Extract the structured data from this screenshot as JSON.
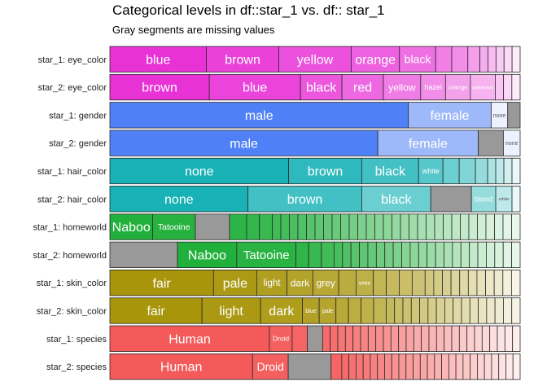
{
  "title": "Categorical levels in df::star_1 vs. df:: star_1",
  "subtitle": "Gray segments are missing values",
  "colors": {
    "missing": "#999999",
    "outline": "#2b2b2b",
    "eye_color": "#e832d6",
    "gender": "#4f80f5",
    "hair_color": "#18b2b6",
    "homeworld": "#21b03b",
    "skin_color": "#a8950a",
    "species": "#f45a5a"
  },
  "chart_data": {
    "type": "bar",
    "orientation": "horizontal",
    "stacked": true,
    "value_unit": "proportion of rows",
    "rows": [
      {
        "label": "star_1: eye_color",
        "color": "eye_color",
        "segments": [
          {
            "level": "blue",
            "value": 0.2424
          },
          {
            "level": "brown",
            "value": 0.1818
          },
          {
            "level": "yellow",
            "value": 0.1818
          },
          {
            "level": "orange",
            "value": 0.1212
          },
          {
            "level": "black",
            "value": 0.0909
          },
          {
            "level": "",
            "value": 0.0404
          },
          {
            "level": "",
            "value": 0.0404
          },
          {
            "level": "",
            "value": 0.0303
          },
          {
            "level": "",
            "value": 0.0202
          },
          {
            "level": "",
            "value": 0.0202
          },
          {
            "level": "",
            "value": 0.0202
          },
          {
            "level": "",
            "value": 0.0202
          },
          {
            "level": "",
            "value": 0.0202
          }
        ]
      },
      {
        "label": "star_2: eye_color",
        "color": "eye_color",
        "segments": [
          {
            "level": "brown",
            "value": 0.2424
          },
          {
            "level": "blue",
            "value": 0.2222
          },
          {
            "level": "black",
            "value": 0.101
          },
          {
            "level": "red",
            "value": 0.101
          },
          {
            "level": "yellow",
            "value": 0.0909
          },
          {
            "level": "hazel",
            "value": 0.0606
          },
          {
            "level": "orange",
            "value": 0.0606
          },
          {
            "level": "unknown",
            "value": 0.0606
          },
          {
            "level": "",
            "value": 0.0202
          },
          {
            "level": "",
            "value": 0.0202
          },
          {
            "level": "",
            "value": 0.0202
          }
        ]
      },
      {
        "label": "star_1: gender",
        "color": "gender",
        "segments": [
          {
            "level": "male",
            "value": 0.7273
          },
          {
            "level": "female",
            "value": 0.202
          },
          {
            "level": "none",
            "value": 0.0404
          },
          {
            "level": "",
            "value": 0.0303,
            "missing": true
          }
        ]
      },
      {
        "label": "star_2: gender",
        "color": "gender",
        "segments": [
          {
            "level": "male",
            "value": 0.6465
          },
          {
            "level": "female",
            "value": 0.2424
          },
          {
            "level": "",
            "value": 0.0606,
            "missing": true
          },
          {
            "level": "none",
            "value": 0.0404
          }
        ]
      },
      {
        "label": "star_1: hair_color",
        "color": "hair_color",
        "segments": [
          {
            "level": "none",
            "value": 0.4444
          },
          {
            "level": "brown",
            "value": 0.1818
          },
          {
            "level": "black",
            "value": 0.1414
          },
          {
            "level": "white",
            "value": 0.0606
          },
          {
            "level": "",
            "value": 0.0404
          },
          {
            "level": "",
            "value": 0.0404
          },
          {
            "level": "",
            "value": 0.0303
          },
          {
            "level": "",
            "value": 0.0202
          },
          {
            "level": "",
            "value": 0.0202
          },
          {
            "level": "",
            "value": 0.0202
          },
          {
            "level": "",
            "value": 0.0202
          }
        ]
      },
      {
        "label": "star_2: hair_color",
        "color": "hair_color",
        "segments": [
          {
            "level": "none",
            "value": 0.3434
          },
          {
            "level": "brown",
            "value": 0.2828
          },
          {
            "level": "black",
            "value": 0.1717
          },
          {
            "level": "",
            "value": 0.101,
            "missing": true
          },
          {
            "level": "blond",
            "value": 0.0606
          },
          {
            "level": "white",
            "value": 0.0404
          },
          {
            "level": "",
            "value": 0.0202
          }
        ]
      },
      {
        "label": "star_1: homeworld",
        "color": "homeworld",
        "segments": [
          {
            "level": "Naboo",
            "value": 0.101
          },
          {
            "level": "Tatooine",
            "value": 0.101
          },
          {
            "level": "",
            "value": 0.0808,
            "missing": true
          },
          {
            "level": "",
            "value": 0.0404
          },
          {
            "level": "",
            "value": 0.0303
          },
          {
            "level": "",
            "value": 0.0303
          },
          {
            "level": "",
            "value": 0.0202
          },
          {
            "level": "",
            "value": 0.0202
          },
          {
            "level": "",
            "value": 0.0202
          },
          {
            "level": "",
            "value": 0.0202
          },
          {
            "level": "",
            "value": 0.0202
          },
          {
            "level": "",
            "value": 0.0202
          },
          {
            "level": "",
            "value": 0.0202
          },
          {
            "level": "",
            "value": 0.0202
          },
          {
            "level": "",
            "value": 0.0202
          },
          {
            "level": "",
            "value": 0.0202
          },
          {
            "level": "",
            "value": 0.0202
          },
          {
            "level": "",
            "value": 0.0202
          },
          {
            "level": "",
            "value": 0.0202
          },
          {
            "level": "",
            "value": 0.0202
          },
          {
            "level": "",
            "value": 0.0202
          },
          {
            "level": "",
            "value": 0.0202
          },
          {
            "level": "",
            "value": 0.0202
          },
          {
            "level": "",
            "value": 0.0202
          },
          {
            "level": "",
            "value": 0.0202
          },
          {
            "level": "",
            "value": 0.0202
          },
          {
            "level": "",
            "value": 0.0202
          },
          {
            "level": "",
            "value": 0.0202
          },
          {
            "level": "",
            "value": 0.0202
          },
          {
            "level": "",
            "value": 0.0202
          },
          {
            "level": "",
            "value": 0.0202
          },
          {
            "level": "",
            "value": 0.0202
          },
          {
            "level": "",
            "value": 0.0202
          },
          {
            "level": "",
            "value": 0.0202
          },
          {
            "level": "",
            "value": 0.0202
          }
        ]
      },
      {
        "label": "star_2: homeworld",
        "color": "homeworld",
        "segments": [
          {
            "level": "",
            "value": 0.1616,
            "missing": true
          },
          {
            "level": "Naboo",
            "value": 0.1414
          },
          {
            "level": "Tatooine",
            "value": 0.1414
          },
          {
            "level": "",
            "value": 0.0303
          },
          {
            "level": "",
            "value": 0.0303
          },
          {
            "level": "",
            "value": 0.0303
          },
          {
            "level": "",
            "value": 0.0202
          },
          {
            "level": "",
            "value": 0.0202
          },
          {
            "level": "",
            "value": 0.0202
          },
          {
            "level": "",
            "value": 0.0202
          },
          {
            "level": "",
            "value": 0.0202
          },
          {
            "level": "",
            "value": 0.0202
          },
          {
            "level": "",
            "value": 0.0202
          },
          {
            "level": "",
            "value": 0.0202
          },
          {
            "level": "",
            "value": 0.0202
          },
          {
            "level": "",
            "value": 0.0202
          },
          {
            "level": "",
            "value": 0.0202
          },
          {
            "level": "",
            "value": 0.0202
          },
          {
            "level": "",
            "value": 0.0202
          },
          {
            "level": "",
            "value": 0.0202
          },
          {
            "level": "",
            "value": 0.0202
          },
          {
            "level": "",
            "value": 0.0202
          },
          {
            "level": "",
            "value": 0.0202
          },
          {
            "level": "",
            "value": 0.0202
          },
          {
            "level": "",
            "value": 0.0202
          },
          {
            "level": "",
            "value": 0.0202
          },
          {
            "level": "",
            "value": 0.0202
          },
          {
            "level": "",
            "value": 0.0202
          }
        ]
      },
      {
        "label": "star_1: skin_color",
        "color": "skin_color",
        "segments": [
          {
            "level": "fair",
            "value": 0.2424
          },
          {
            "level": "pale",
            "value": 0.101
          },
          {
            "level": "light",
            "value": 0.0707
          },
          {
            "level": "dark",
            "value": 0.0606
          },
          {
            "level": "grey",
            "value": 0.0606
          },
          {
            "level": "",
            "value": 0.0404
          },
          {
            "level": "white",
            "value": 0.0404
          },
          {
            "level": "",
            "value": 0.0303
          },
          {
            "level": "",
            "value": 0.0303
          },
          {
            "level": "",
            "value": 0.0303
          },
          {
            "level": "",
            "value": 0.0303
          },
          {
            "level": "",
            "value": 0.0202
          },
          {
            "level": "",
            "value": 0.0202
          },
          {
            "level": "",
            "value": 0.0202
          },
          {
            "level": "",
            "value": 0.0202
          },
          {
            "level": "",
            "value": 0.0202
          },
          {
            "level": "",
            "value": 0.0202
          },
          {
            "level": "",
            "value": 0.0202
          },
          {
            "level": "",
            "value": 0.0202
          },
          {
            "level": "",
            "value": 0.0202
          },
          {
            "level": "",
            "value": 0.0202
          },
          {
            "level": "",
            "value": 0.0202
          }
        ]
      },
      {
        "label": "star_2: skin_color",
        "color": "skin_color",
        "segments": [
          {
            "level": "fair",
            "value": 0.2222
          },
          {
            "level": "light",
            "value": 0.1414
          },
          {
            "level": "dark",
            "value": 0.101
          },
          {
            "level": "blue",
            "value": 0.0404
          },
          {
            "level": "pale",
            "value": 0.0404
          },
          {
            "level": "",
            "value": 0.0303
          },
          {
            "level": "",
            "value": 0.0303
          },
          {
            "level": "",
            "value": 0.0303
          },
          {
            "level": "",
            "value": 0.0303
          },
          {
            "level": "",
            "value": 0.0202
          },
          {
            "level": "",
            "value": 0.0202
          },
          {
            "level": "",
            "value": 0.0202
          },
          {
            "level": "",
            "value": 0.0202
          },
          {
            "level": "",
            "value": 0.0202
          },
          {
            "level": "",
            "value": 0.0202
          },
          {
            "level": "",
            "value": 0.0202
          },
          {
            "level": "",
            "value": 0.0202
          },
          {
            "level": "",
            "value": 0.0202
          },
          {
            "level": "",
            "value": 0.0202
          },
          {
            "level": "",
            "value": 0.0202
          },
          {
            "level": "",
            "value": 0.0202
          },
          {
            "level": "",
            "value": 0.0202
          },
          {
            "level": "",
            "value": 0.0202
          },
          {
            "level": "",
            "value": 0.0202
          },
          {
            "level": "",
            "value": 0.0202
          }
        ]
      },
      {
        "label": "star_1: species",
        "color": "species",
        "segments": [
          {
            "level": "Human",
            "value": 0.4242
          },
          {
            "level": "Droid",
            "value": 0.0606
          },
          {
            "level": "",
            "value": 0.0404
          },
          {
            "level": "",
            "value": 0.0404,
            "missing": true
          },
          {
            "level": "",
            "value": 0.0202
          },
          {
            "level": "",
            "value": 0.0202
          },
          {
            "level": "",
            "value": 0.0202
          },
          {
            "level": "",
            "value": 0.0202
          },
          {
            "level": "",
            "value": 0.0202
          },
          {
            "level": "",
            "value": 0.0202
          },
          {
            "level": "",
            "value": 0.0202
          },
          {
            "level": "",
            "value": 0.0202
          },
          {
            "level": "",
            "value": 0.0202
          },
          {
            "level": "",
            "value": 0.0202
          },
          {
            "level": "",
            "value": 0.0202
          },
          {
            "level": "",
            "value": 0.0202
          },
          {
            "level": "",
            "value": 0.0202
          },
          {
            "level": "",
            "value": 0.0202
          },
          {
            "level": "",
            "value": 0.0202
          },
          {
            "level": "",
            "value": 0.0202
          },
          {
            "level": "",
            "value": 0.0202
          },
          {
            "level": "",
            "value": 0.0202
          },
          {
            "level": "",
            "value": 0.0202
          },
          {
            "level": "",
            "value": 0.0202
          },
          {
            "level": "",
            "value": 0.0202
          },
          {
            "level": "",
            "value": 0.0202
          },
          {
            "level": "",
            "value": 0.0202
          },
          {
            "level": "",
            "value": 0.0202
          },
          {
            "level": "",
            "value": 0.0202
          },
          {
            "level": "",
            "value": 0.0202
          }
        ]
      },
      {
        "label": "star_2: species",
        "color": "species",
        "segments": [
          {
            "level": "Human",
            "value": 0.404
          },
          {
            "level": "Droid",
            "value": 0.101
          },
          {
            "level": "",
            "value": 0.1212,
            "missing": true
          },
          {
            "level": "",
            "value": 0.0303
          },
          {
            "level": "",
            "value": 0.0202
          },
          {
            "level": "",
            "value": 0.0202
          },
          {
            "level": "",
            "value": 0.0202
          },
          {
            "level": "",
            "value": 0.0202
          },
          {
            "level": "",
            "value": 0.0202
          },
          {
            "level": "",
            "value": 0.0202
          },
          {
            "level": "",
            "value": 0.0202
          },
          {
            "level": "",
            "value": 0.0202
          },
          {
            "level": "",
            "value": 0.0202
          },
          {
            "level": "",
            "value": 0.0202
          },
          {
            "level": "",
            "value": 0.0202
          },
          {
            "level": "",
            "value": 0.0202
          },
          {
            "level": "",
            "value": 0.0202
          },
          {
            "level": "",
            "value": 0.0202
          },
          {
            "level": "",
            "value": 0.0202
          },
          {
            "level": "",
            "value": 0.0202
          },
          {
            "level": "",
            "value": 0.0202
          },
          {
            "level": "",
            "value": 0.0202
          },
          {
            "level": "",
            "value": 0.0202
          },
          {
            "level": "",
            "value": 0.0202
          },
          {
            "level": "",
            "value": 0.0202
          },
          {
            "level": "",
            "value": 0.0202
          },
          {
            "level": "",
            "value": 0.0202
          },
          {
            "level": "",
            "value": 0.0202
          },
          {
            "level": "",
            "value": 0.0202
          }
        ]
      }
    ]
  }
}
